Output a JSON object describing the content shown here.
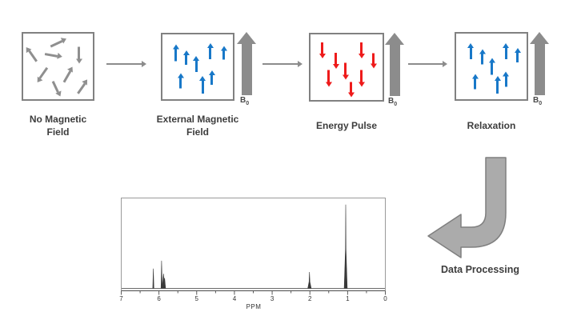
{
  "diagram": {
    "b0_label": "B",
    "b0_subscript": "0",
    "process_label": "Data Processing",
    "colors": {
      "spin_up_blue": "#1878c8",
      "energy_pulse_red": "#ee1b1b",
      "random_spin_gray": "#8f8f8f",
      "field_arrow_gray": "#8c8c8c",
      "curved_arrow_fill": "#ababab",
      "caption_text": "#3d3d3d"
    },
    "panels": [
      {
        "id": "no-magnetic-field",
        "label": "No Magnetic\nField",
        "arrow_color": "#8f8f8f",
        "has_b0": false,
        "arrows": [
          [
            50,
            13,
            65,
            22
          ],
          [
            12,
            32,
            -35,
            22
          ],
          [
            44,
            33,
            100,
            22
          ],
          [
            81,
            33,
            180,
            21
          ],
          [
            28,
            64,
            215,
            22
          ],
          [
            64,
            62,
            30,
            22
          ],
          [
            48,
            84,
            155,
            21
          ],
          [
            85,
            80,
            35,
            21
          ]
        ]
      },
      {
        "id": "external-magnetic-field",
        "label": "External Magnetic\nField",
        "arrow_color": "#1878c8",
        "has_b0": true,
        "arrows": [
          [
            19,
            28,
            0,
            21
          ],
          [
            34,
            36,
            0,
            18
          ],
          [
            48,
            46,
            0,
            20
          ],
          [
            68,
            26,
            0,
            20
          ],
          [
            87,
            28,
            0,
            17
          ],
          [
            26,
            72,
            0,
            19
          ],
          [
            57,
            78,
            0,
            22
          ],
          [
            70,
            67,
            0,
            18
          ]
        ]
      },
      {
        "id": "energy-pulse",
        "label": "Energy Pulse",
        "arrow_color": "#ee1b1b",
        "has_b0": true,
        "arrows": [
          [
            17,
            24,
            180,
            20
          ],
          [
            35,
            40,
            180,
            20
          ],
          [
            49,
            56,
            180,
            21
          ],
          [
            26,
            67,
            180,
            21
          ],
          [
            71,
            24,
            180,
            20
          ],
          [
            88,
            40,
            180,
            19
          ],
          [
            71,
            67,
            180,
            21
          ],
          [
            57,
            84,
            180,
            19
          ]
        ]
      },
      {
        "id": "relaxation",
        "label": "Relaxation",
        "arrow_color": "#1878c8",
        "has_b0": true,
        "arrows": [
          [
            21,
            27,
            0,
            20
          ],
          [
            37,
            35,
            0,
            19
          ],
          [
            51,
            50,
            0,
            21
          ],
          [
            71,
            27,
            0,
            20
          ],
          [
            87,
            33,
            0,
            18
          ],
          [
            27,
            73,
            0,
            19
          ],
          [
            59,
            78,
            0,
            22
          ],
          [
            71,
            70,
            0,
            19
          ]
        ]
      }
    ]
  },
  "chart_data": {
    "type": "line",
    "xlabel": "PPM",
    "x_ticks": [
      "7",
      "6",
      "5",
      "4",
      "3",
      "2",
      "1",
      "0"
    ],
    "x_range": [
      7,
      0
    ],
    "ylim": [
      0,
      1
    ],
    "axis_reversed": true,
    "minor_ticks_every": 0.5,
    "line_color": "#3a3a3a",
    "peaks": [
      {
        "ppm": 6.15,
        "h": 0.23,
        "w": 0.03
      },
      {
        "ppm": 5.93,
        "h": 0.32,
        "w": 0.03
      },
      {
        "ppm": 5.88,
        "h": 0.17,
        "w": 0.07
      },
      {
        "ppm": 5.85,
        "h": 0.12,
        "w": 0.05
      },
      {
        "ppm": 2.01,
        "h": 0.1,
        "w": 0.09
      },
      {
        "ppm": 2.01,
        "h": 0.19,
        "w": 0.035
      },
      {
        "ppm": 1.05,
        "h": 0.55,
        "w": 0.08
      },
      {
        "ppm": 1.05,
        "h": 0.97,
        "w": 0.025
      }
    ]
  }
}
